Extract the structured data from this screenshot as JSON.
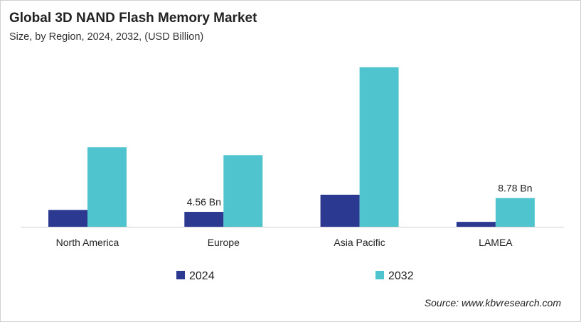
{
  "chart_data": {
    "type": "bar",
    "title": "Global 3D NAND Flash Memory Market",
    "subtitle": "Size, by Region, 2024, 2032, (USD Billion)",
    "categories": [
      "North America",
      "Europe",
      "Asia Pacific",
      "LAMEA"
    ],
    "series": [
      {
        "name": "2024",
        "color": "#2b3990",
        "values": [
          5.15,
          4.56,
          9.8,
          1.5
        ]
      },
      {
        "name": "2032",
        "color": "#4fc4cf",
        "values": [
          24.3,
          21.9,
          48.8,
          8.78
        ]
      }
    ],
    "data_labels": [
      {
        "category": "Europe",
        "series": "2024",
        "text": "4.56 Bn"
      },
      {
        "category": "LAMEA",
        "series": "2032",
        "text": "8.78 Bn"
      }
    ],
    "ylim": [
      0,
      50
    ],
    "grid": false,
    "legend": "bottom",
    "source": "Source: www.kbvresearch.com"
  }
}
